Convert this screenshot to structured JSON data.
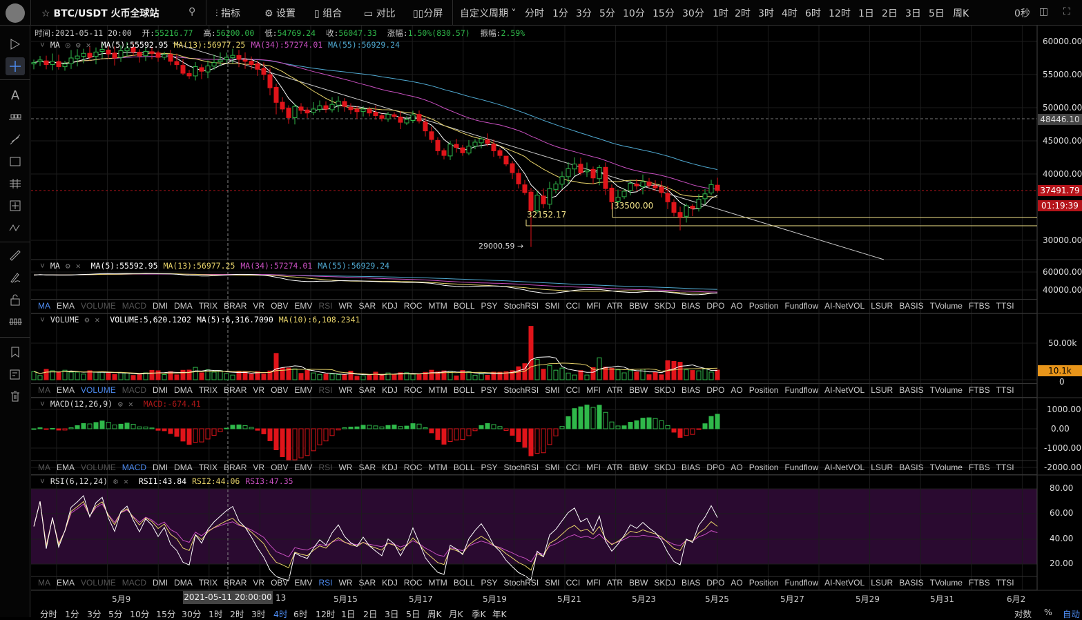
{
  "topbar": {
    "symbol": "BTC/USDT 火币全球站",
    "menu": [
      "指标",
      "设置",
      "组合",
      "对比",
      "分屏"
    ],
    "custom_period": "自定义周期",
    "periods": [
      "分时",
      "1分",
      "3分",
      "5分",
      "10分",
      "15分",
      "30分",
      "1时",
      "2时",
      "3时",
      "4时",
      "6时",
      "12时",
      "1日",
      "2日",
      "3日",
      "5日",
      "周K"
    ],
    "active_period": "4时",
    "countdown": "0秒"
  },
  "info_line": {
    "time_label": "时间:",
    "time": "2021-05-11 20:00",
    "open_label": "开:",
    "open": "55216.77",
    "high_label": "高:",
    "high": "56200.00",
    "low_label": "低:",
    "low": "54769.24",
    "close_label": "收:",
    "close": "56047.33",
    "change_label": "涨幅:",
    "change": "1.50%(830.57)",
    "amp_label": "振幅:",
    "amp": "2.59%"
  },
  "main_legend": {
    "name": "MA",
    "ma5": "MA(5):55592.95",
    "ma13": "MA(13):56977.25",
    "ma34": "MA(34):57274.01",
    "ma55": "MA(55):56929.24"
  },
  "ma_pane_legend": {
    "name": "MA",
    "ma5": "MA(5):55592.95",
    "ma13": "MA(13):56977.25",
    "ma34": "MA(34):57274.01",
    "ma55": "MA(55):56929.24"
  },
  "volume_legend": {
    "name": "VOLUME",
    "vol": "VOLUME:5,620.1202",
    "ma5": "MA(5):6,316.7090",
    "ma10": "MA(10):6,108.2341"
  },
  "macd_legend": {
    "name": "MACD(12,26,9)",
    "macd": "MACD:-674.41"
  },
  "rsi_legend": {
    "name": "RSI(6,12,24)",
    "rsi1": "RSI1:43.84",
    "rsi2": "RSI2:44.06",
    "rsi3": "RSI3:47.35"
  },
  "indicator_tabs": [
    "MA",
    "EMA",
    "VOLUME",
    "MACD",
    "DMI",
    "DMA",
    "TRIX",
    "BRAR",
    "VR",
    "OBV",
    "EMV",
    "RSI",
    "WR",
    "SAR",
    "KDJ",
    "ROC",
    "MTM",
    "BOLL",
    "PSY",
    "StochRSI",
    "SMI",
    "CCI",
    "MFI",
    "ATR",
    "BBW",
    "SKDJ",
    "BIAS",
    "DPO",
    "AO",
    "Position",
    "Fundflow",
    "AI-NetVOL",
    "LSUR",
    "BASIS",
    "TVolume",
    "FTBS",
    "TTSI"
  ],
  "tab_rows": [
    {
      "active": "MA",
      "disabled": [
        "VOLUME",
        "MACD",
        "RSI"
      ]
    },
    {
      "active": "VOLUME",
      "disabled": [
        "MA",
        "MACD",
        "RSI"
      ]
    },
    {
      "active": "MACD",
      "disabled": [
        "MA",
        "VOLUME",
        "RSI"
      ]
    },
    {
      "active": "RSI",
      "disabled": [
        "MA",
        "VOLUME",
        "MACD"
      ]
    }
  ],
  "price_axis": [
    "60000.00",
    "55000.00",
    "50000.00",
    "45000.00",
    "40000.00",
    "30000.00"
  ],
  "price_tags": {
    "crosshair": "48446.10",
    "last": "37491.79",
    "countdown": "01:19:39"
  },
  "ma_pane_axis": [
    "60000.00",
    "40000.00"
  ],
  "volume_axis": [
    "50.00k",
    "0"
  ],
  "volume_tag": "10.1k",
  "macd_axis": [
    "1000.00",
    "0.00",
    "-1000.00",
    "-2000.00"
  ],
  "rsi_axis": [
    "80.00",
    "60.00",
    "40.00",
    "20.00"
  ],
  "annotations": {
    "low1": "32152.17",
    "low2": "33500.00",
    "min": "29000.59 →"
  },
  "date_axis": [
    "5月9",
    "13",
    "5月15",
    "5月17",
    "5月19",
    "5月21",
    "5月23",
    "5月25",
    "5月27",
    "5月29",
    "5月31",
    "6月2"
  ],
  "crosshair_date": "2021-05-11 20:00:00",
  "bottom_periods": [
    "分时",
    "1分",
    "3分",
    "5分",
    "10分",
    "15分",
    "30分",
    "1时",
    "2时",
    "3时",
    "4时",
    "6时",
    "12时",
    "1日",
    "2日",
    "3日",
    "5日",
    "周K",
    "月K",
    "季K",
    "年K"
  ],
  "bottom_right": {
    "log": "对数",
    "percent": "%",
    "auto": "自动"
  },
  "colors": {
    "up": "#2fb84a",
    "down": "#e0141a",
    "ma5": "#ffffff",
    "ma13": "#e8d46a",
    "ma34": "#c84fc0",
    "ma55": "#4fa8d0",
    "active": "#4d8bf0",
    "rsi_band": "#2a0a30"
  },
  "chart": {
    "closes": [
      56800,
      57200,
      56500,
      57000,
      56200,
      56600,
      57500,
      57800,
      58200,
      57600,
      58400,
      58800,
      58100,
      57500,
      58600,
      59000,
      58400,
      57800,
      58500,
      58200,
      57600,
      58000,
      57000,
      56500,
      55200,
      54800,
      56200,
      55500,
      56300,
      56800,
      57200,
      57600,
      57900,
      57300,
      57000,
      56500,
      55800,
      55000,
      53000,
      50800,
      49800,
      48500,
      50200,
      49600,
      49200,
      49800,
      50300,
      49800,
      50500,
      51000,
      50200,
      49700,
      49400,
      49800,
      49200,
      48800,
      48400,
      49000,
      48700,
      47800,
      48200,
      48900,
      48000,
      46500,
      45200,
      43500,
      42800,
      44500,
      44000,
      43200,
      44200,
      44800,
      45300,
      44600,
      43500,
      42800,
      41500,
      40200,
      38500,
      37200,
      34500,
      36800,
      35500,
      37800,
      38500,
      39600,
      40800,
      41500,
      40200,
      40600,
      39400,
      41000,
      37800,
      35800,
      36500,
      37400,
      38600,
      38200,
      38800,
      38300,
      37900,
      37200,
      35800,
      34200,
      33500,
      35200,
      34800,
      36200,
      37000,
      38400,
      37500
    ]
  }
}
